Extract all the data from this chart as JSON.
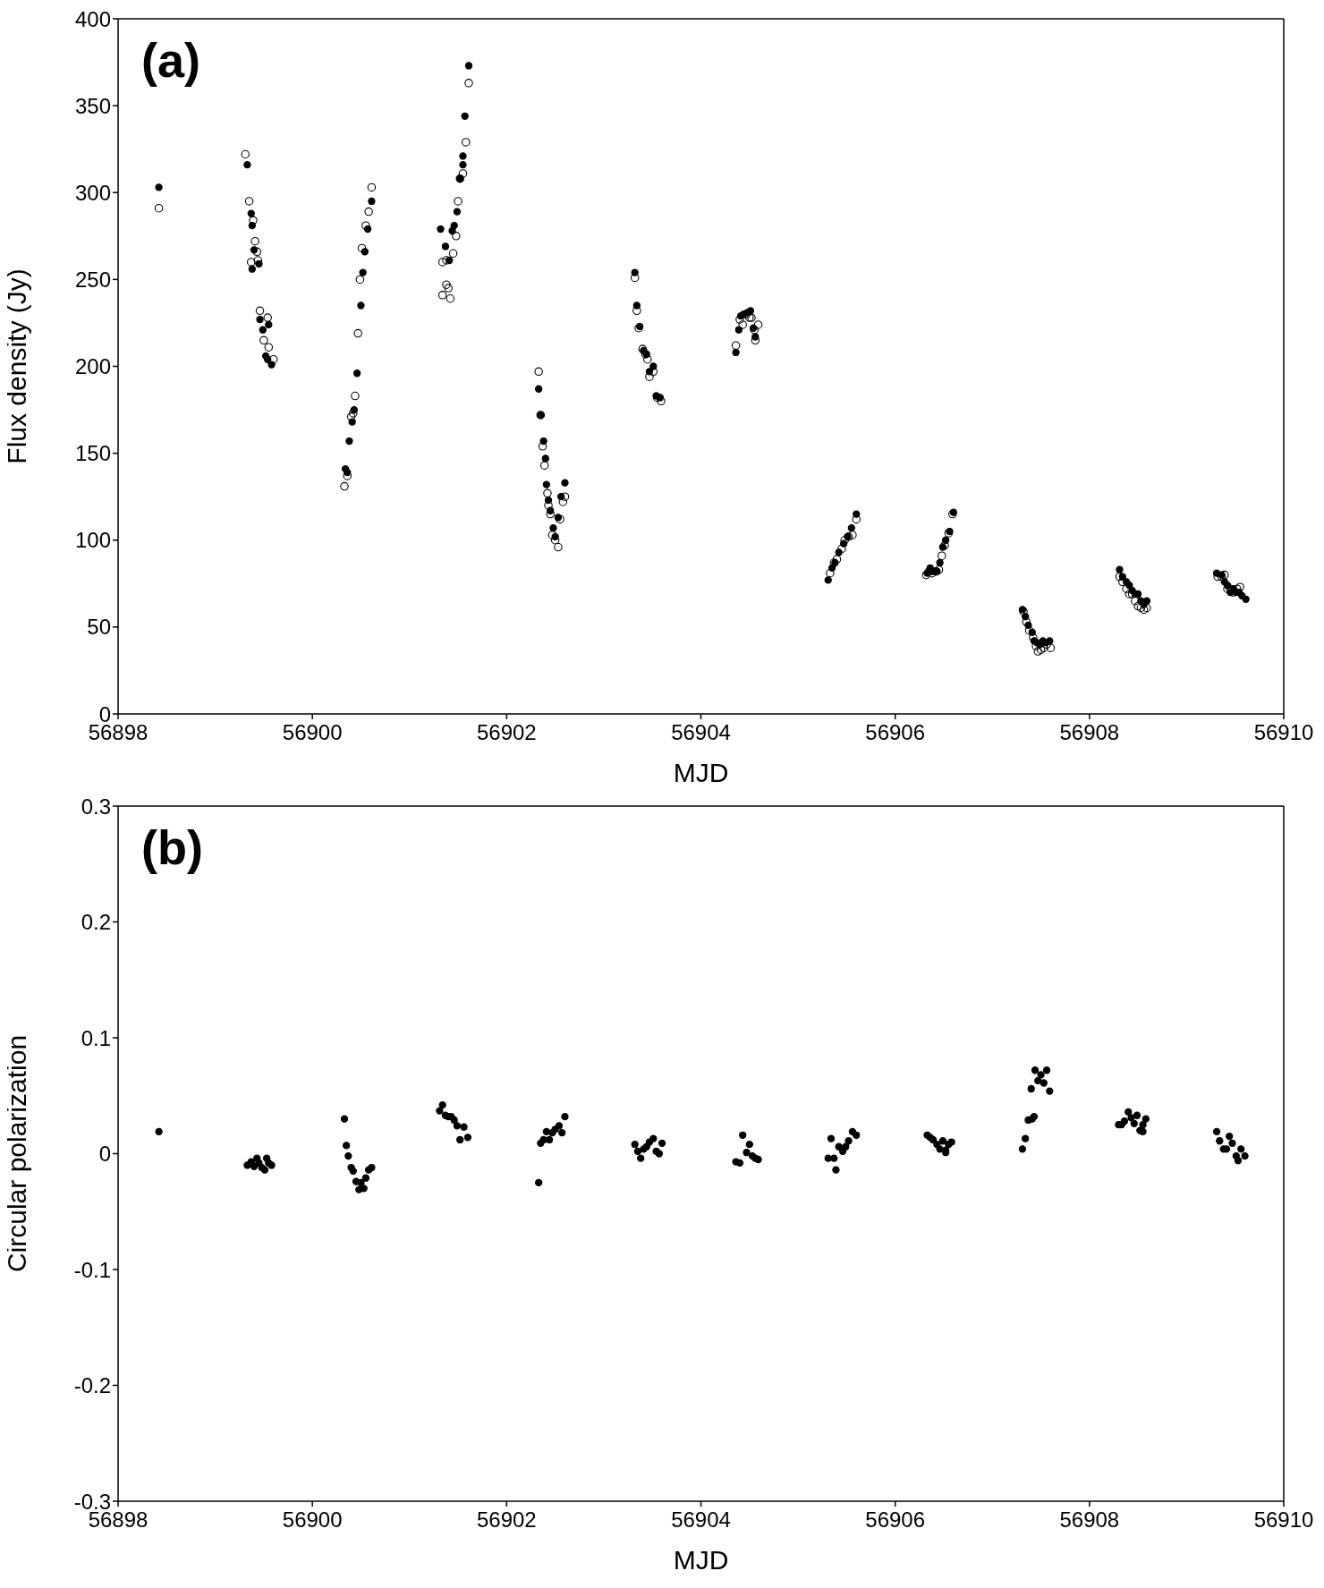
{
  "chart_data": [
    {
      "type": "scatter",
      "annotations": [
        "(a)"
      ],
      "xlabel": "MJD",
      "ylabel": "Flux density (Jy)",
      "xlim": [
        56898,
        56910
      ],
      "xticks": [
        56898,
        56900,
        56902,
        56904,
        56906,
        56908,
        56910
      ],
      "ylim": [
        0,
        400
      ],
      "yticks": [
        0,
        50,
        100,
        150,
        200,
        250,
        300,
        350,
        400
      ],
      "marker": "circle",
      "series": [
        {
          "color": "#000000",
          "x": [
            56898.42,
            56899.33,
            56899.37,
            56899.38,
            56899.4,
            56899.38,
            56899.45,
            56899.46,
            56899.49,
            56899.55,
            56899.52,
            56899.54,
            56899.58,
            56900.34,
            56900.36,
            56900.38,
            56900.41,
            56900.43,
            56900.46,
            56900.5,
            56900.52,
            56900.54,
            56900.57,
            56900.61,
            56901.32,
            56901.37,
            56901.41,
            56901.44,
            56901.46,
            56901.49,
            56901.52,
            56901.55,
            56901.55,
            56901.57,
            56901.61,
            56902.33,
            56902.35,
            56902.38,
            56902.4,
            56902.41,
            56902.43,
            56902.45,
            56902.48,
            56902.5,
            56902.53,
            56902.56,
            56902.6,
            56903.32,
            56903.34,
            56903.37,
            56903.41,
            56903.44,
            56903.47,
            56903.51,
            56903.54,
            56903.58,
            56904.36,
            56904.39,
            56904.41,
            56904.44,
            56904.48,
            56904.51,
            56904.54,
            56904.56,
            56905.31,
            56905.35,
            56905.38,
            56905.42,
            56905.47,
            56905.51,
            56905.55,
            56905.6,
            56906.33,
            56906.36,
            56906.39,
            56906.43,
            56906.46,
            56906.49,
            56906.52,
            56906.56,
            56906.6,
            56907.31,
            56907.34,
            56907.37,
            56907.41,
            56907.43,
            56907.46,
            56907.49,
            56907.52,
            56907.55,
            56907.59,
            56908.31,
            56908.34,
            56908.38,
            56908.41,
            56908.44,
            56908.47,
            56908.5,
            56908.53,
            56908.56,
            56908.59,
            56909.31,
            56909.36,
            56909.39,
            56909.42,
            56909.45,
            56909.48,
            56909.51,
            56909.54,
            56909.57,
            56909.61
          ],
          "values": [
            303,
            316,
            288,
            281,
            267,
            256,
            259,
            227,
            221,
            224,
            206,
            204,
            201,
            141,
            139,
            157,
            168,
            175,
            196,
            235,
            254,
            266,
            279,
            295,
            279,
            269,
            261,
            278,
            281,
            289,
            308,
            321,
            316,
            344,
            373,
            187,
            172,
            157,
            147,
            132,
            123,
            117,
            107,
            102,
            113,
            125,
            133,
            254,
            235,
            223,
            209,
            207,
            197,
            200,
            183,
            182,
            208,
            221,
            229,
            230,
            231,
            232,
            222,
            217,
            77,
            84,
            87,
            93,
            98,
            102,
            107,
            115,
            81,
            84,
            82,
            82,
            87,
            96,
            100,
            105,
            116,
            60,
            56,
            51,
            47,
            42,
            41,
            40,
            42,
            41,
            42,
            83,
            79,
            76,
            74,
            71,
            69,
            69,
            65,
            63,
            65,
            81,
            80,
            76,
            74,
            70,
            72,
            70,
            70,
            68,
            66
          ]
        },
        {
          "color": "#000000",
          "x": [
            56898.42,
            56899.31,
            56899.35,
            56899.39,
            56899.41,
            56899.43,
            56899.37,
            56899.44,
            56899.46,
            56899.5,
            56899.54,
            56899.55,
            56899.6,
            56900.33,
            56900.36,
            56900.4,
            56900.42,
            56900.44,
            56900.47,
            56900.49,
            56900.51,
            56900.55,
            56900.58,
            56900.61,
            56901.34,
            56901.38,
            56901.34,
            56901.38,
            56901.4,
            56901.42,
            56901.45,
            56901.48,
            56901.5,
            56901.52,
            56901.55,
            56901.58,
            56901.61,
            56902.33,
            56902.35,
            56902.37,
            56902.39,
            56902.42,
            56902.43,
            56902.45,
            56902.47,
            56902.5,
            56902.53,
            56902.55,
            56902.58,
            56902.6,
            56903.32,
            56903.34,
            56903.36,
            56903.4,
            56903.43,
            56903.45,
            56903.47,
            56903.51,
            56903.55,
            56903.59,
            56904.36,
            56904.4,
            56904.43,
            56904.47,
            56904.5,
            56904.52,
            56904.55,
            56904.59,
            56904.56,
            56905.33,
            56905.37,
            56905.4,
            56905.45,
            56905.48,
            56905.52,
            56905.56,
            56905.6,
            56906.32,
            56906.35,
            56906.38,
            56906.42,
            56906.45,
            56906.48,
            56906.51,
            56906.55,
            56906.59,
            56907.32,
            56907.35,
            56907.38,
            56907.42,
            56907.45,
            56907.47,
            56907.5,
            56907.53,
            56907.56,
            56907.6,
            56908.31,
            56908.34,
            56908.38,
            56908.41,
            56908.44,
            56908.47,
            56908.5,
            56908.53,
            56908.56,
            56908.59,
            56909.32,
            56909.36,
            56909.39,
            56909.42,
            56909.45,
            56909.48,
            56909.52,
            56909.55
          ],
          "values": [
            291,
            322,
            295,
            284,
            272,
            266,
            260,
            261,
            232,
            215,
            228,
            211,
            204,
            131,
            137,
            171,
            173,
            183,
            219,
            250,
            268,
            281,
            289,
            303,
            260,
            261,
            241,
            247,
            245,
            239,
            265,
            275,
            295,
            308,
            311,
            329,
            363,
            197,
            172,
            154,
            143,
            127,
            120,
            115,
            103,
            100,
            96,
            112,
            122,
            125,
            251,
            232,
            222,
            210,
            207,
            204,
            194,
            197,
            182,
            180,
            212,
            227,
            224,
            230,
            228,
            228,
            221,
            224,
            215,
            81,
            87,
            89,
            95,
            100,
            102,
            103,
            112,
            80,
            82,
            81,
            82,
            83,
            91,
            97,
            104,
            115,
            59,
            53,
            48,
            44,
            39,
            36,
            37,
            38,
            40,
            38,
            79,
            76,
            72,
            69,
            69,
            65,
            62,
            61,
            60,
            61,
            79,
            79,
            80,
            72,
            72,
            70,
            72,
            73
          ]
        }
      ]
    },
    {
      "type": "scatter",
      "annotations": [
        "(b)"
      ],
      "xlabel": "MJD",
      "ylabel": "Circular polarization",
      "xlim": [
        56898,
        56910
      ],
      "xticks": [
        56898,
        56900,
        56902,
        56904,
        56906,
        56908,
        56910
      ],
      "ylim": [
        -0.3,
        0.3
      ],
      "yticks": [
        -0.3,
        -0.2,
        -0.1,
        0,
        0.1,
        0.2,
        0.3
      ],
      "marker": "circle",
      "series": [
        {
          "color": "#000000",
          "x": [
            56898.42,
            56899.33,
            56899.37,
            56899.4,
            56899.43,
            56899.45,
            56899.48,
            56899.51,
            56899.53,
            56899.55,
            56899.58,
            56900.33,
            56900.35,
            56900.37,
            56900.4,
            56900.42,
            56900.45,
            56900.48,
            56900.5,
            56900.53,
            56900.55,
            56900.58,
            56900.61,
            56901.31,
            56901.34,
            56901.37,
            56901.4,
            56901.43,
            56901.46,
            56901.49,
            56901.52,
            56901.56,
            56901.6,
            56902.33,
            56902.35,
            56902.38,
            56902.41,
            56902.44,
            56902.47,
            56902.5,
            56902.54,
            56902.57,
            56902.6,
            56903.32,
            56903.35,
            56903.38,
            56903.41,
            56903.44,
            56903.47,
            56903.51,
            56903.54,
            56903.57,
            56903.6,
            56904.36,
            56904.4,
            56904.43,
            56904.47,
            56904.5,
            56904.53,
            56904.56,
            56904.59,
            56905.31,
            56905.34,
            56905.37,
            56905.39,
            56905.42,
            56905.46,
            56905.49,
            56905.52,
            56905.56,
            56905.6,
            56906.33,
            56906.36,
            56906.39,
            56906.43,
            56906.46,
            56906.49,
            56906.52,
            56906.55,
            56906.58,
            56906.52,
            56907.31,
            56907.34,
            56907.37,
            56907.41,
            56907.43,
            56907.4,
            56907.44,
            56907.47,
            56907.5,
            56907.53,
            56907.56,
            56907.59,
            56908.3,
            56908.33,
            56908.36,
            56908.4,
            56908.43,
            56908.46,
            56908.49,
            56908.52,
            56908.55,
            56908.58,
            56908.55,
            56909.31,
            56909.34,
            56909.38,
            56909.41,
            56909.44,
            56909.47,
            56909.51,
            56909.53,
            56909.56,
            56909.6
          ],
          "values": [
            0.019,
            -0.01,
            -0.007,
            -0.011,
            -0.004,
            -0.008,
            -0.012,
            -0.014,
            -0.004,
            -0.008,
            -0.01,
            0.03,
            0.007,
            -0.002,
            -0.012,
            -0.015,
            -0.024,
            -0.031,
            -0.025,
            -0.03,
            -0.021,
            -0.014,
            -0.012,
            0.037,
            0.042,
            0.033,
            0.032,
            0.032,
            0.029,
            0.024,
            0.012,
            0.023,
            0.014,
            -0.025,
            0.009,
            0.012,
            0.019,
            0.012,
            0.018,
            0.021,
            0.024,
            0.018,
            0.032,
            0.008,
            0.002,
            -0.004,
            0.004,
            0.006,
            0.01,
            0.013,
            0.002,
            0.0,
            0.009,
            -0.007,
            -0.008,
            0.016,
            0.001,
            0.008,
            -0.002,
            -0.004,
            -0.005,
            -0.004,
            0.013,
            -0.004,
            -0.014,
            0.006,
            0.002,
            0.006,
            0.011,
            0.019,
            0.016,
            0.016,
            0.014,
            0.012,
            0.008,
            0.004,
            0.011,
            0.003,
            0.008,
            0.01,
            0.001,
            0.004,
            0.013,
            0.029,
            0.03,
            0.032,
            0.056,
            0.072,
            0.063,
            0.068,
            0.061,
            0.072,
            0.054,
            0.025,
            0.025,
            0.028,
            0.036,
            0.031,
            0.026,
            0.033,
            0.02,
            0.025,
            0.03,
            0.019,
            0.019,
            0.011,
            0.004,
            0.004,
            0.015,
            0.009,
            -0.002,
            -0.006,
            0.004,
            -0.002
          ]
        }
      ]
    }
  ]
}
